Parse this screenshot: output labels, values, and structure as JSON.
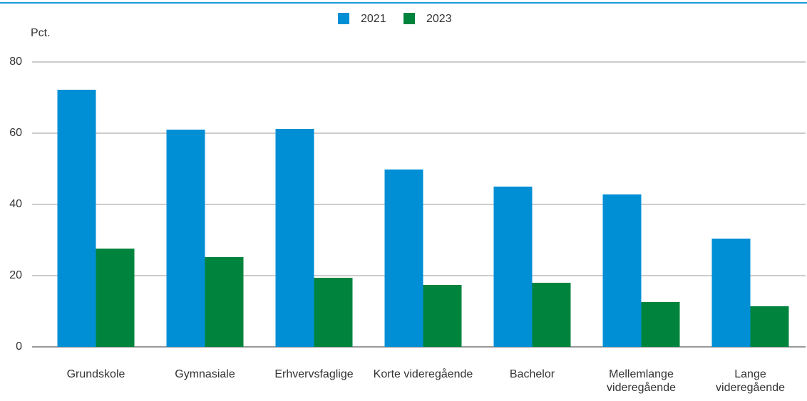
{
  "chart_data": {
    "type": "bar",
    "y_axis_label": "Pct.",
    "categories": [
      "Grundskole",
      "Gymnasiale",
      "Erhvervsfaglige",
      "Korte videregående",
      "Bachelor",
      "Mellemlange videregående",
      "Lange videregående"
    ],
    "series": [
      {
        "name": "2021",
        "color": "#008fd5",
        "values": [
          72.2,
          61,
          61.2,
          49.8,
          45,
          42.8,
          30.4
        ]
      },
      {
        "name": "2023",
        "color": "#00843d",
        "values": [
          27.6,
          25.2,
          19.4,
          17.4,
          18,
          12.6,
          11.4
        ]
      }
    ],
    "ylim": [
      0,
      80
    ],
    "yticks": [
      0,
      20,
      40,
      60,
      80
    ],
    "grid": true,
    "legend": "top"
  }
}
